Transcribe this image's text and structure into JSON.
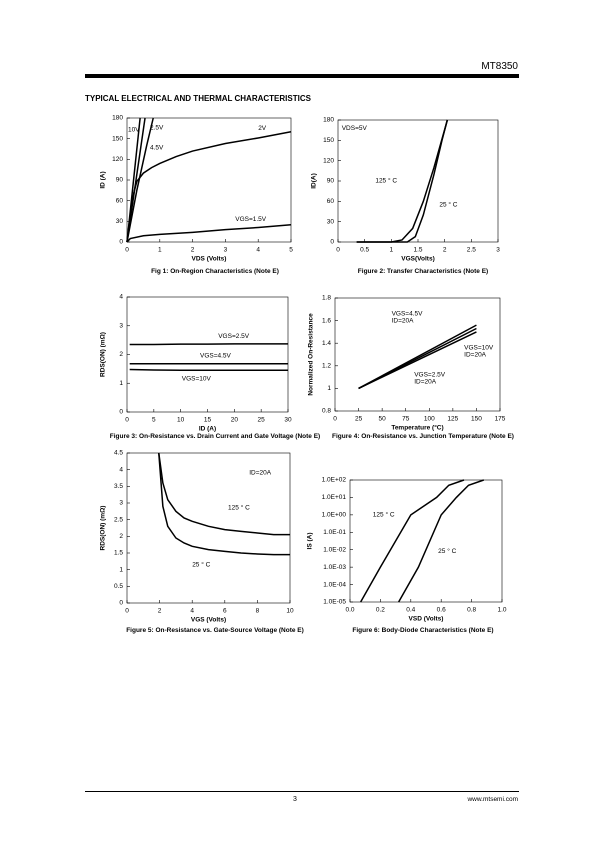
{
  "header": {
    "part": "MT8350"
  },
  "section_title": "TYPICAL ELECTRICAL AND THERMAL CHARACTERISTICS",
  "footer": {
    "page": "3",
    "website": "www.mtsemi.com"
  },
  "chart_data": [
    {
      "type": "line",
      "caption": "Fig 1: On-Region Characteristics (Note E)",
      "x_label": "VDS (Volts)",
      "y_label": "ID (A)",
      "color": "#000000",
      "xlim": [
        0,
        5
      ],
      "xticks": [
        0,
        1,
        2,
        3,
        4,
        5
      ],
      "ylim": [
        0,
        180
      ],
      "yticks": [
        0,
        30,
        60,
        90,
        120,
        150,
        180
      ],
      "series": [
        {
          "name": "10V",
          "x": [
            0,
            0.4
          ],
          "values": [
            0,
            180
          ]
        },
        {
          "name": "2.5V",
          "x": [
            0,
            0.3,
            0.6,
            0.8
          ],
          "values": [
            0,
            75,
            140,
            180
          ]
        },
        {
          "name": "4.5V",
          "x": [
            0,
            0.55
          ],
          "values": [
            0,
            180
          ]
        },
        {
          "name": "2V",
          "x": [
            0,
            0.1,
            0.2,
            0.3,
            0.5,
            0.75,
            1,
            1.5,
            2,
            3,
            4,
            5
          ],
          "values": [
            0,
            40,
            70,
            88,
            100,
            108,
            114,
            124,
            132,
            143,
            151,
            160
          ]
        },
        {
          "name": "VGS=1.5V",
          "x": [
            0,
            0.1,
            0.5,
            1,
            2,
            3,
            4,
            5
          ],
          "values": [
            0,
            5,
            9,
            11,
            14,
            18,
            21,
            25
          ]
        }
      ]
    },
    {
      "type": "line",
      "caption": "Figure 2: Transfer Characteristics (Note E)",
      "x_label": "VGS(Volts)",
      "y_label": "ID(A)",
      "color": "#000000",
      "annotations": [
        "VDS=5V"
      ],
      "xlim": [
        0,
        3
      ],
      "xticks": [
        0,
        0.5,
        1,
        1.5,
        2,
        2.5,
        3
      ],
      "ylim": [
        0,
        180
      ],
      "yticks": [
        0,
        30,
        60,
        90,
        120,
        150,
        180
      ],
      "series": [
        {
          "name": "125 ° C",
          "x": [
            0.35,
            1.0,
            1.2,
            1.4,
            1.6,
            1.8,
            2.05
          ],
          "values": [
            0,
            0,
            3,
            20,
            60,
            110,
            180
          ]
        },
        {
          "name": "25 ° C",
          "x": [
            0.35,
            1.3,
            1.45,
            1.6,
            1.8,
            1.95,
            2.05
          ],
          "values": [
            0,
            0,
            8,
            40,
            100,
            150,
            180
          ]
        }
      ]
    },
    {
      "type": "line",
      "caption": "Figure 3: On-Resistance vs. Drain Current and Gate Voltage (Note E)",
      "x_label": "ID (A)",
      "y_label": "RDS(ON) (mΩ)",
      "color": "#000000",
      "xlim": [
        0,
        30
      ],
      "xticks": [
        0,
        5,
        10,
        15,
        20,
        25,
        30
      ],
      "ylim": [
        0,
        4
      ],
      "yticks": [
        0,
        1,
        2,
        3,
        4
      ],
      "series": [
        {
          "name": "VGS=2.5V",
          "x": [
            0.5,
            5,
            10,
            15,
            20,
            25,
            30
          ],
          "values": [
            2.35,
            2.35,
            2.36,
            2.36,
            2.37,
            2.37,
            2.37
          ]
        },
        {
          "name": "VGS=4.5V",
          "x": [
            0.5,
            5,
            10,
            15,
            20,
            25,
            30
          ],
          "values": [
            1.68,
            1.68,
            1.68,
            1.68,
            1.68,
            1.68,
            1.68
          ]
        },
        {
          "name": "VGS=10V",
          "x": [
            0.5,
            5,
            10,
            15,
            20,
            25,
            30
          ],
          "values": [
            1.48,
            1.46,
            1.45,
            1.45,
            1.45,
            1.45,
            1.45
          ]
        }
      ]
    },
    {
      "type": "line",
      "caption": "Figure 4: On-Resistance vs. Junction Temperature (Note E)",
      "x_label": "Temperature (°C)",
      "y_label": "Normalized On-Resistance",
      "color": "#000000",
      "xlim": [
        0,
        175
      ],
      "xticks": [
        0,
        25,
        50,
        75,
        100,
        125,
        150,
        175
      ],
      "ylim": [
        0.8,
        1.8
      ],
      "yticks": [
        0.8,
        1,
        1.2,
        1.4,
        1.6,
        1.8
      ],
      "series": [
        {
          "name": "VGS=4.5V",
          "note": "ID=20A",
          "x": [
            25,
            150
          ],
          "values": [
            1.0,
            1.56
          ]
        },
        {
          "name": "VGS=10V",
          "note": "ID=20A",
          "x": [
            25,
            150
          ],
          "values": [
            1.0,
            1.5
          ]
        },
        {
          "name": "VGS=2.5V",
          "note": "ID=20A",
          "x": [
            25,
            150
          ],
          "values": [
            1.0,
            1.53
          ]
        }
      ]
    },
    {
      "type": "line",
      "caption": "Figure 5: On-Resistance vs. Gate-Source Voltage (Note E)",
      "x_label": "VGS (Volts)",
      "y_label": "RDS(ON) (mΩ)",
      "color": "#000000",
      "annotations": [
        "ID=20A"
      ],
      "xlim": [
        0,
        10
      ],
      "xticks": [
        0,
        2,
        4,
        6,
        8,
        10
      ],
      "ylim": [
        0,
        4.5
      ],
      "yticks": [
        0,
        0.5,
        1,
        1.5,
        2,
        2.5,
        3,
        3.5,
        4,
        4.5
      ],
      "series": [
        {
          "name": "125 ° C",
          "x": [
            1.95,
            2.2,
            2.5,
            3,
            3.5,
            4,
            5,
            6,
            7,
            8,
            9,
            10
          ],
          "values": [
            4.5,
            3.6,
            3.1,
            2.75,
            2.55,
            2.45,
            2.3,
            2.2,
            2.15,
            2.1,
            2.05,
            2.05
          ]
        },
        {
          "name": "25 ° C",
          "x": [
            1.95,
            2.2,
            2.5,
            3,
            3.5,
            4,
            5,
            6,
            7,
            8,
            9,
            10
          ],
          "values": [
            4.5,
            2.9,
            2.3,
            1.95,
            1.8,
            1.7,
            1.6,
            1.55,
            1.5,
            1.47,
            1.45,
            1.45
          ]
        }
      ]
    },
    {
      "type": "line",
      "caption": "Figure 6: Body-Diode Characteristics (Note E)",
      "x_label": "VSD (Volts)",
      "y_label": "IS (A)",
      "color": "#000000",
      "log_y": true,
      "xlim": [
        0,
        1
      ],
      "xticks": [
        {
          "value": 0,
          "label": "0.0"
        },
        0.2,
        0.4,
        0.6,
        0.8,
        {
          "value": 1,
          "label": "1.0"
        }
      ],
      "ylim": [
        1e-05,
        100
      ],
      "yticks": [
        {
          "value": 1e-05,
          "label": "1.0E-05"
        },
        {
          "value": 0.0001,
          "label": "1.0E-04"
        },
        {
          "value": 0.001,
          "label": "1.0E-03"
        },
        {
          "value": 0.01,
          "label": "1.0E-02"
        },
        {
          "value": 0.1,
          "label": "1.0E-01"
        },
        {
          "value": 1,
          "label": "1.0E+00"
        },
        {
          "value": 10,
          "label": "1.0E+01"
        },
        {
          "value": 100,
          "label": "1.0E+02"
        }
      ],
      "series": [
        {
          "name": "125 ° C",
          "x": [
            0.07,
            0.2,
            0.4,
            0.57,
            0.65,
            0.75
          ],
          "values": [
            1e-05,
            0.001,
            1,
            10,
            50,
            100
          ]
        },
        {
          "name": "25 ° C",
          "x": [
            0.32,
            0.45,
            0.6,
            0.7,
            0.78,
            0.88
          ],
          "values": [
            1e-05,
            0.001,
            1,
            10,
            50,
            100
          ]
        }
      ]
    }
  ]
}
